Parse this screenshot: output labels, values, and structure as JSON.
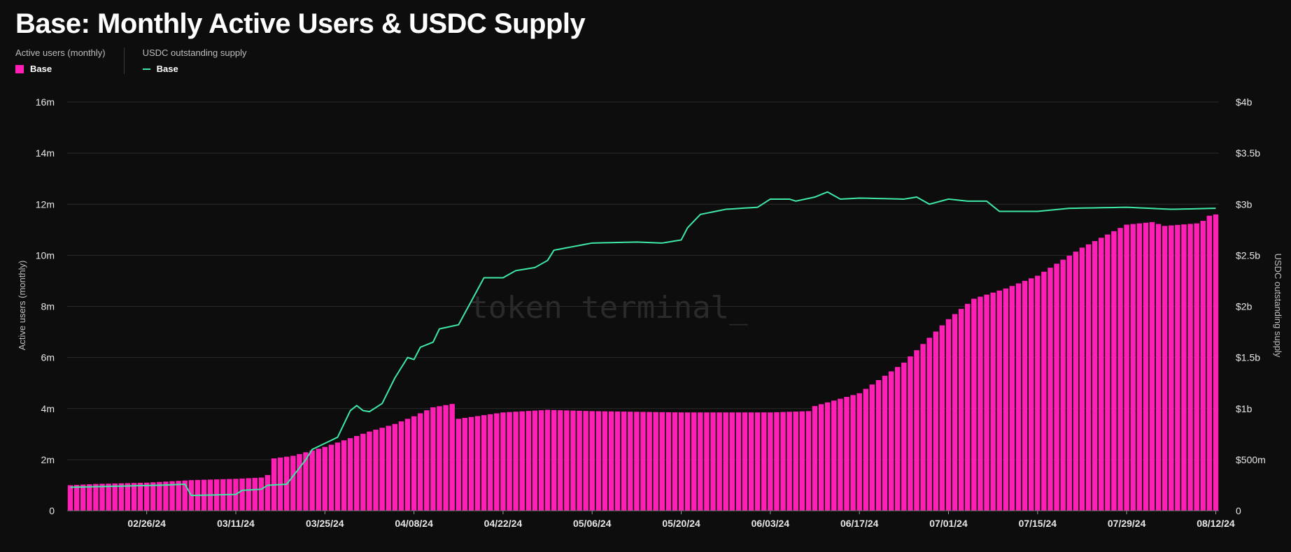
{
  "title": "Base: Monthly Active Users & USDC Supply",
  "legend": {
    "left_caption": "Active users (monthly)",
    "left_entry": "Base",
    "right_caption": "USDC outstanding supply",
    "right_entry": "Base"
  },
  "watermark": "token terminal_",
  "colors": {
    "bars": "#ff1fb4",
    "line": "#3ee8a6",
    "background": "#0d0d0d",
    "grid": "#2b2b2b"
  },
  "chart_data": {
    "type": "bar",
    "title": "Base: Monthly Active Users & USDC Supply",
    "x_start": "2024-02-14",
    "x_end": "2024-08-12",
    "x_ticks": [
      "02/26/24",
      "03/11/24",
      "03/25/24",
      "04/08/24",
      "04/22/24",
      "05/06/24",
      "05/20/24",
      "06/03/24",
      "06/17/24",
      "07/01/24",
      "07/15/24",
      "07/29/24",
      "08/12/24"
    ],
    "left_axis": {
      "label": "Active users (monthly)",
      "range": [
        0,
        16000000
      ],
      "ticks": [
        "0",
        "2m",
        "4m",
        "6m",
        "8m",
        "10m",
        "12m",
        "14m",
        "16m"
      ]
    },
    "right_axis": {
      "label": "USDC outstanding supply",
      "range": [
        0,
        4000000000
      ],
      "ticks": [
        "0",
        "$500m",
        "$1b",
        "$1.5b",
        "$2b",
        "$2.5b",
        "$3b",
        "$3.5b",
        "$4b"
      ]
    },
    "grid": true,
    "legend_position": "top-left",
    "series": [
      {
        "name": "Base",
        "axis": "left",
        "type": "bar",
        "keyframes": [
          [
            "2024-02-14",
            1.0
          ],
          [
            "2024-02-18",
            1.05
          ],
          [
            "2024-02-26",
            1.1
          ],
          [
            "2024-03-04",
            1.2
          ],
          [
            "2024-03-11",
            1.25
          ],
          [
            "2024-03-15",
            1.3
          ],
          [
            "2024-03-16",
            1.4
          ],
          [
            "2024-03-17",
            2.05
          ],
          [
            "2024-03-20",
            2.15
          ],
          [
            "2024-03-25",
            2.5
          ],
          [
            "2024-04-01",
            3.1
          ],
          [
            "2024-04-05",
            3.4
          ],
          [
            "2024-04-08",
            3.7
          ],
          [
            "2024-04-11",
            4.05
          ],
          [
            "2024-04-14",
            4.18
          ],
          [
            "2024-04-15",
            3.6
          ],
          [
            "2024-04-22",
            3.85
          ],
          [
            "2024-04-29",
            3.95
          ],
          [
            "2024-05-06",
            3.9
          ],
          [
            "2024-05-20",
            3.85
          ],
          [
            "2024-06-03",
            3.85
          ],
          [
            "2024-06-09",
            3.9
          ],
          [
            "2024-06-10",
            4.1
          ],
          [
            "2024-06-17",
            4.6
          ],
          [
            "2024-06-24",
            5.8
          ],
          [
            "2024-07-01",
            7.5
          ],
          [
            "2024-07-05",
            8.3
          ],
          [
            "2024-07-10",
            8.7
          ],
          [
            "2024-07-15",
            9.2
          ],
          [
            "2024-07-22",
            10.3
          ],
          [
            "2024-07-29",
            11.2
          ],
          [
            "2024-08-02",
            11.3
          ],
          [
            "2024-08-04",
            11.15
          ],
          [
            "2024-08-09",
            11.25
          ],
          [
            "2024-08-10",
            11.35
          ],
          [
            "2024-08-11",
            11.55
          ],
          [
            "2024-08-12",
            11.6
          ]
        ],
        "keyframe_unit": "millions of users"
      },
      {
        "name": "Base",
        "axis": "right",
        "type": "line",
        "keyframes": [
          [
            "2024-02-14",
            0.23
          ],
          [
            "2024-02-28",
            0.25
          ],
          [
            "2024-03-03",
            0.26
          ],
          [
            "2024-03-04",
            0.15
          ],
          [
            "2024-03-11",
            0.16
          ],
          [
            "2024-03-12",
            0.2
          ],
          [
            "2024-03-15",
            0.21
          ],
          [
            "2024-03-16",
            0.25
          ],
          [
            "2024-03-19",
            0.26
          ],
          [
            "2024-03-22",
            0.5
          ],
          [
            "2024-03-23",
            0.6
          ],
          [
            "2024-03-27",
            0.72
          ],
          [
            "2024-03-29",
            0.98
          ],
          [
            "2024-03-30",
            1.03
          ],
          [
            "2024-03-31",
            0.98
          ],
          [
            "2024-04-01",
            0.97
          ],
          [
            "2024-04-03",
            1.05
          ],
          [
            "2024-04-05",
            1.3
          ],
          [
            "2024-04-06",
            1.4
          ],
          [
            "2024-04-07",
            1.5
          ],
          [
            "2024-04-08",
            1.48
          ],
          [
            "2024-04-09",
            1.6
          ],
          [
            "2024-04-11",
            1.65
          ],
          [
            "2024-04-12",
            1.78
          ],
          [
            "2024-04-15",
            1.82
          ],
          [
            "2024-04-17",
            2.05
          ],
          [
            "2024-04-19",
            2.28
          ],
          [
            "2024-04-22",
            2.28
          ],
          [
            "2024-04-24",
            2.35
          ],
          [
            "2024-04-27",
            2.38
          ],
          [
            "2024-04-29",
            2.45
          ],
          [
            "2024-04-30",
            2.55
          ],
          [
            "2024-05-06",
            2.62
          ],
          [
            "2024-05-13",
            2.63
          ],
          [
            "2024-05-17",
            2.62
          ],
          [
            "2024-05-20",
            2.65
          ],
          [
            "2024-05-21",
            2.77
          ],
          [
            "2024-05-23",
            2.9
          ],
          [
            "2024-05-27",
            2.95
          ],
          [
            "2024-06-01",
            2.97
          ],
          [
            "2024-06-03",
            3.05
          ],
          [
            "2024-06-06",
            3.05
          ],
          [
            "2024-06-07",
            3.03
          ],
          [
            "2024-06-10",
            3.07
          ],
          [
            "2024-06-12",
            3.12
          ],
          [
            "2024-06-14",
            3.05
          ],
          [
            "2024-06-17",
            3.06
          ],
          [
            "2024-06-24",
            3.05
          ],
          [
            "2024-06-26",
            3.07
          ],
          [
            "2024-06-28",
            3.0
          ],
          [
            "2024-07-01",
            3.05
          ],
          [
            "2024-07-04",
            3.03
          ],
          [
            "2024-07-07",
            3.03
          ],
          [
            "2024-07-09",
            2.93
          ],
          [
            "2024-07-15",
            2.93
          ],
          [
            "2024-07-20",
            2.96
          ],
          [
            "2024-07-29",
            2.97
          ],
          [
            "2024-08-05",
            2.95
          ],
          [
            "2024-08-12",
            2.96
          ]
        ],
        "keyframe_unit": "billions of USD"
      }
    ]
  }
}
